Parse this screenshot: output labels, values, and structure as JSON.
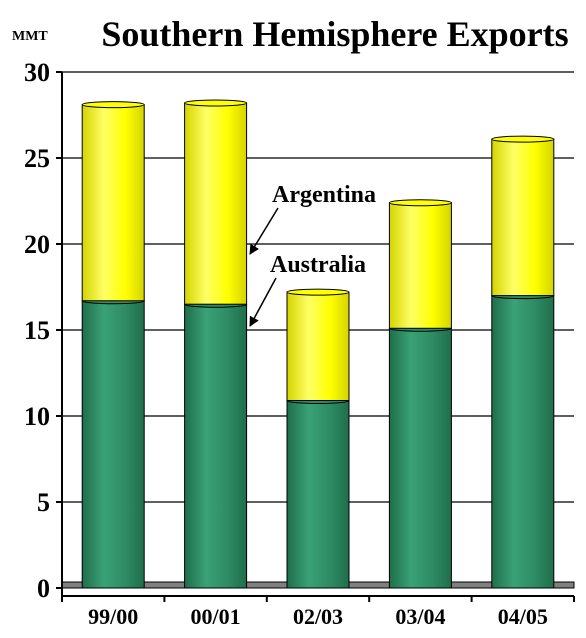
{
  "chart_data": {
    "type": "bar",
    "stacked": true,
    "title": "Southern Hemisphere Exports",
    "unit_label": "MMT",
    "categories": [
      "99/00",
      "00/01",
      "02/03",
      "03/04",
      "04/05"
    ],
    "series": [
      {
        "name": "Australia",
        "values": [
          16.7,
          16.5,
          10.9,
          15.1,
          17.0
        ],
        "color": "#2e8b63"
      },
      {
        "name": "Argentina",
        "values": [
          11.4,
          11.7,
          6.3,
          7.3,
          9.1
        ],
        "color": "#ffff00"
      }
    ],
    "ylim": [
      0,
      30
    ],
    "yticks": [
      "0",
      "5",
      "10",
      "15",
      "20",
      "25",
      "30"
    ],
    "grid": true,
    "legend": "inline-with-arrows"
  }
}
